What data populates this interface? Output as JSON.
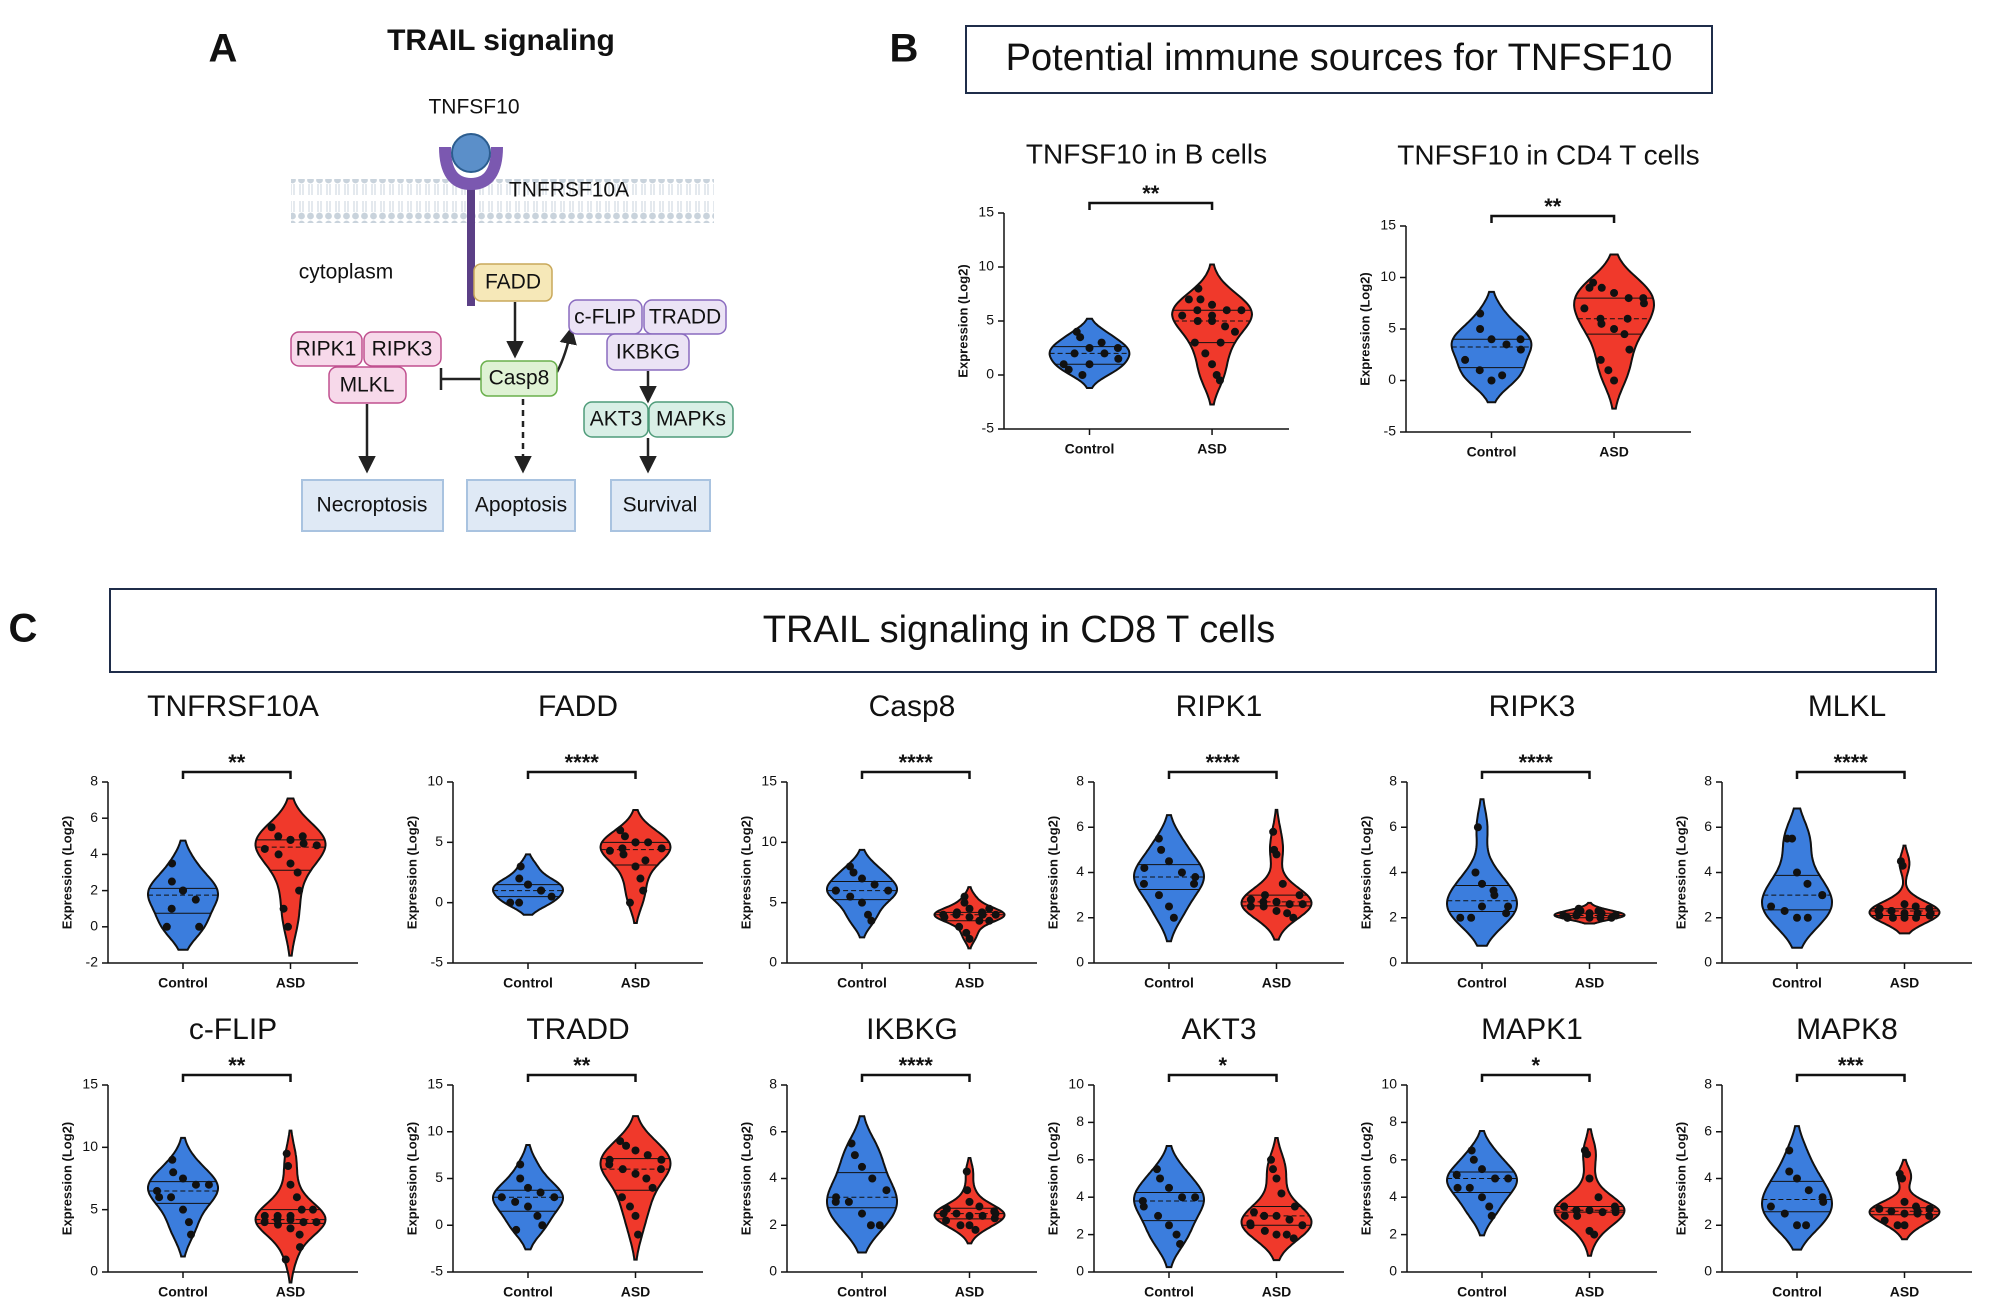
{
  "panels": {
    "a": {
      "label": "A",
      "title": "TRAIL signaling"
    },
    "b": {
      "label": "B",
      "title": "Potential immune sources for TNFSF10"
    },
    "c": {
      "label": "C",
      "title": "TRAIL signaling in CD8 T cells"
    }
  },
  "diagram": {
    "ligand": "TNFSF10",
    "receptor": "TNFRSF10A",
    "compartment": "cytoplasm",
    "nodes": [
      "FADD",
      "Casp8",
      "RIPK1",
      "RIPK3",
      "MLKL",
      "c-FLIP",
      "TRADD",
      "IKBKG",
      "AKT3",
      "MAPKs",
      "Necroptosis",
      "Apoptosis",
      "Survival"
    ]
  },
  "chart_data": [
    {
      "type": "violin",
      "title": "TNFSF10 in B cells",
      "ylabel": "Expression (Log2)",
      "categories": [
        "Control",
        "ASD"
      ],
      "colors": [
        "#3b7ddd",
        "#f0392b"
      ],
      "groups": [
        [
          4,
          3.5,
          2.5,
          2,
          1.5,
          1,
          0,
          1,
          3,
          2.5,
          0.5,
          2
        ],
        [
          8,
          7,
          6.5,
          6,
          6,
          5.5,
          5,
          5,
          4.5,
          4,
          3,
          2,
          1,
          0,
          -0.5,
          7,
          6,
          5.5,
          3
        ]
      ],
      "ylim": [
        -5,
        15
      ],
      "yticks": [
        -5,
        0,
        5,
        10,
        15
      ],
      "significance": "**"
    },
    {
      "type": "violin",
      "title": "TNFSF10 in CD4 T cells",
      "ylabel": "Expression (Log2)",
      "categories": [
        "Control",
        "ASD"
      ],
      "colors": [
        "#3b7ddd",
        "#f0392b"
      ],
      "groups": [
        [
          6.5,
          5,
          4,
          3.5,
          3,
          2,
          1,
          0,
          0.5,
          4
        ],
        [
          9.5,
          9,
          8.5,
          8,
          7.5,
          7,
          6,
          5,
          4.5,
          3,
          2,
          1,
          0,
          6,
          8,
          9,
          5.5
        ]
      ],
      "ylim": [
        -5,
        15
      ],
      "yticks": [
        -5,
        0,
        5,
        10,
        15
      ],
      "significance": "**"
    },
    {
      "type": "violin",
      "title": "TNFRSF10A",
      "ylabel": "Expression (Log2)",
      "categories": [
        "Control",
        "ASD"
      ],
      "colors": [
        "#3b7ddd",
        "#f0392b"
      ],
      "groups": [
        [
          3.5,
          2.5,
          2,
          1.5,
          0,
          0,
          1,
          2
        ],
        [
          5.5,
          5,
          4.8,
          4.6,
          4.5,
          4.3,
          4,
          3.5,
          3,
          2,
          1,
          0,
          4.8,
          5
        ]
      ],
      "ylim": [
        -2,
        8
      ],
      "yticks": [
        -2,
        0,
        2,
        4,
        6,
        8
      ],
      "significance": "**"
    },
    {
      "type": "violin",
      "title": "FADD",
      "ylabel": "Expression (Log2)",
      "categories": [
        "Control",
        "ASD"
      ],
      "colors": [
        "#3b7ddd",
        "#f0392b"
      ],
      "groups": [
        [
          3,
          2,
          1.5,
          1,
          0.5,
          0,
          0,
          1.5,
          1
        ],
        [
          6,
          5.5,
          5,
          5,
          4.5,
          4.3,
          4,
          3,
          2,
          1,
          0,
          4.5,
          5,
          3.5
        ]
      ],
      "ylim": [
        -5,
        10
      ],
      "yticks": [
        -5,
        0,
        5,
        10
      ],
      "significance": "****"
    },
    {
      "type": "violin",
      "title": "Casp8",
      "ylabel": "Expression (Log2)",
      "categories": [
        "Control",
        "ASD"
      ],
      "colors": [
        "#3b7ddd",
        "#f0392b"
      ],
      "groups": [
        [
          8,
          7.5,
          7,
          6.5,
          6,
          6,
          5.5,
          5,
          4,
          3.5,
          6
        ],
        [
          5.5,
          5,
          4.5,
          4.2,
          4,
          4,
          4,
          3.8,
          3.5,
          3.5,
          3,
          2.5,
          2,
          4,
          4.5,
          3.8,
          4.2
        ]
      ],
      "ylim": [
        0,
        15
      ],
      "yticks": [
        0,
        5,
        10,
        15
      ],
      "significance": "****"
    },
    {
      "type": "violin",
      "title": "RIPK1",
      "ylabel": "Expression (Log2)",
      "categories": [
        "Control",
        "ASD"
      ],
      "colors": [
        "#3b7ddd",
        "#f0392b"
      ],
      "groups": [
        [
          5.5,
          5,
          4.5,
          4,
          3.8,
          3.5,
          3,
          2.5,
          2,
          3.5,
          4.2
        ],
        [
          5.8,
          5,
          4.8,
          3.5,
          3,
          2.8,
          2.7,
          2.7,
          2.6,
          2.6,
          2.5,
          2.5,
          2.3,
          2.2,
          2,
          2.8,
          3,
          2.7
        ]
      ],
      "ylim": [
        0,
        8
      ],
      "yticks": [
        0,
        2,
        4,
        6,
        8
      ],
      "significance": "****"
    },
    {
      "type": "violin",
      "title": "RIPK3",
      "ylabel": "Expression (Log2)",
      "categories": [
        "Control",
        "ASD"
      ],
      "colors": [
        "#3b7ddd",
        "#f0392b"
      ],
      "groups": [
        [
          6,
          4,
          3.5,
          3,
          2.5,
          2,
          2,
          2.5,
          3.2,
          2.2
        ],
        [
          2.4,
          2.3,
          2.2,
          2.2,
          2.1,
          2.1,
          2.1,
          2,
          2,
          2,
          2,
          2.1,
          2.2,
          2.3,
          2.1,
          2,
          2.2
        ]
      ],
      "ylim": [
        0,
        8
      ],
      "yticks": [
        0,
        2,
        4,
        6,
        8
      ],
      "significance": "****"
    },
    {
      "type": "violin",
      "title": "MLKL",
      "ylabel": "Expression (Log2)",
      "categories": [
        "Control",
        "ASD"
      ],
      "colors": [
        "#3b7ddd",
        "#f0392b"
      ],
      "groups": [
        [
          5.5,
          5.5,
          4,
          3.5,
          3,
          2.5,
          2.3,
          2,
          2,
          3
        ],
        [
          4.5,
          4.3,
          2.6,
          2.5,
          2.4,
          2.3,
          2.3,
          2.2,
          2.2,
          2.1,
          2.1,
          2,
          2,
          2,
          2.2,
          2.4,
          2.3
        ]
      ],
      "ylim": [
        0,
        8
      ],
      "yticks": [
        0,
        2,
        4,
        6,
        8
      ],
      "significance": "****"
    },
    {
      "type": "violin",
      "title": "c-FLIP",
      "ylabel": "Expression (Log2)",
      "categories": [
        "Control",
        "ASD"
      ],
      "colors": [
        "#3b7ddd",
        "#f0392b"
      ],
      "groups": [
        [
          9,
          8,
          7.5,
          7,
          7,
          6.5,
          6,
          5,
          4,
          3,
          6
        ],
        [
          9.5,
          8.5,
          7,
          6,
          5,
          4.5,
          4.5,
          4.2,
          4,
          4,
          4,
          3.8,
          3.5,
          3,
          2,
          1,
          4.2,
          4.5,
          5
        ]
      ],
      "ylim": [
        0,
        15
      ],
      "yticks": [
        0,
        5,
        10,
        15
      ],
      "significance": "**"
    },
    {
      "type": "violin",
      "title": "TRADD",
      "ylabel": "Expression (Log2)",
      "categories": [
        "Control",
        "ASD"
      ],
      "colors": [
        "#3b7ddd",
        "#f0392b"
      ],
      "groups": [
        [
          6.5,
          5,
          4,
          3.5,
          3,
          3,
          2.5,
          2,
          1,
          0,
          -0.5
        ],
        [
          9,
          8.5,
          8,
          7.5,
          7,
          6.5,
          6,
          5.5,
          5,
          4,
          3,
          2,
          1,
          -1,
          6,
          7
        ]
      ],
      "ylim": [
        -5,
        15
      ],
      "yticks": [
        -5,
        0,
        5,
        10,
        15
      ],
      "significance": "**"
    },
    {
      "type": "violin",
      "title": "IKBKG",
      "ylabel": "Expression (Log2)",
      "categories": [
        "Control",
        "ASD"
      ],
      "colors": [
        "#3b7ddd",
        "#f0392b"
      ],
      "groups": [
        [
          5.5,
          5,
          4.5,
          4,
          3.5,
          3,
          3,
          2.5,
          2,
          2,
          3.2
        ],
        [
          4.3,
          3.5,
          3,
          2.8,
          2.6,
          2.5,
          2.5,
          2.4,
          2.4,
          2.3,
          2.2,
          2,
          2,
          1.8,
          2.5,
          2.7
        ]
      ],
      "ylim": [
        0,
        8
      ],
      "yticks": [
        0,
        2,
        4,
        6,
        8
      ],
      "significance": "****"
    },
    {
      "type": "violin",
      "title": "AKT3",
      "ylabel": "Expression (Log2)",
      "categories": [
        "Control",
        "ASD"
      ],
      "colors": [
        "#3b7ddd",
        "#f0392b"
      ],
      "groups": [
        [
          5.5,
          5,
          4.5,
          4,
          4,
          3.5,
          3,
          2.5,
          2,
          1.5,
          3.8
        ],
        [
          6,
          5.5,
          5,
          4.2,
          3.5,
          3.2,
          3,
          3,
          2.8,
          2.5,
          2.5,
          2.2,
          2,
          2,
          1.8,
          2.6,
          3
        ]
      ],
      "ylim": [
        0,
        10
      ],
      "yticks": [
        0,
        2,
        4,
        6,
        8,
        10
      ],
      "significance": "*"
    },
    {
      "type": "violin",
      "title": "MAPK1",
      "ylabel": "Expression (Log2)",
      "categories": [
        "Control",
        "ASD"
      ],
      "colors": [
        "#3b7ddd",
        "#f0392b"
      ],
      "groups": [
        [
          6.5,
          6,
          5.5,
          5,
          5,
          4.5,
          4.5,
          4,
          3.5,
          3,
          5.2
        ],
        [
          6.5,
          6.3,
          5,
          4,
          3.5,
          3.5,
          3.3,
          3.3,
          3.2,
          3.2,
          3,
          3,
          2.2,
          2,
          3.4,
          3.5,
          3.3
        ]
      ],
      "ylim": [
        0,
        10
      ],
      "yticks": [
        0,
        2,
        4,
        6,
        8,
        10
      ],
      "significance": "*"
    },
    {
      "type": "violin",
      "title": "MAPK8",
      "ylabel": "Expression (Log2)",
      "categories": [
        "Control",
        "ASD"
      ],
      "colors": [
        "#3b7ddd",
        "#f0392b"
      ],
      "groups": [
        [
          5.2,
          4.3,
          4,
          3.5,
          3,
          2.8,
          2.5,
          2,
          2,
          3.2
        ],
        [
          4.2,
          4,
          3,
          2.8,
          2.7,
          2.7,
          2.6,
          2.5,
          2.5,
          2.4,
          2.2,
          2,
          2,
          2.6,
          2.7
        ]
      ],
      "ylim": [
        0,
        8
      ],
      "yticks": [
        0,
        2,
        4,
        6,
        8
      ],
      "significance": "***"
    }
  ]
}
